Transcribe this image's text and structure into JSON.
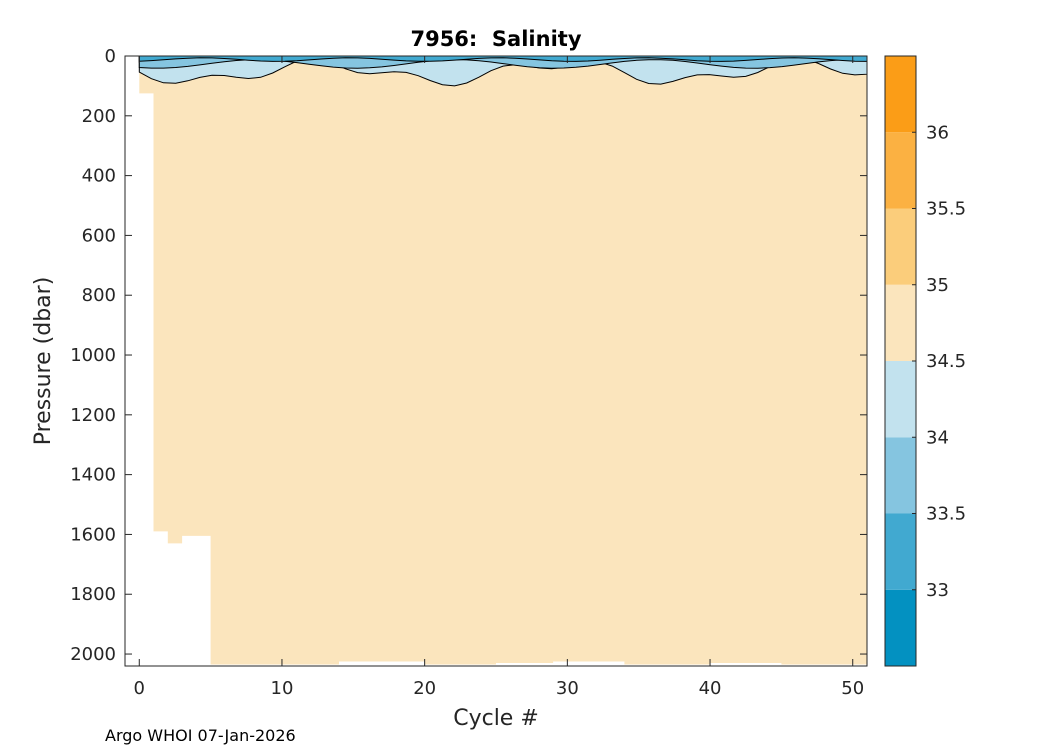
{
  "chart_data": {
    "type": "heatmap",
    "title": "7956:  Salinity",
    "xlabel": "Cycle #",
    "ylabel": "Pressure (dbar)",
    "xlim": [
      -1,
      51
    ],
    "ylim": [
      2040,
      0
    ],
    "xticks": [
      0,
      10,
      20,
      30,
      40,
      50
    ],
    "yticks": [
      0,
      200,
      400,
      600,
      800,
      1000,
      1200,
      1400,
      1600,
      1800,
      2000
    ],
    "grid": false,
    "colorbar": {
      "levels": [
        32.5,
        33,
        33.5,
        34,
        34.5,
        35,
        35.5,
        36,
        36.5
      ],
      "tick_values": [
        33,
        33.5,
        34,
        34.5,
        35,
        35.5,
        36
      ],
      "tick_labels": [
        "33",
        "33.5",
        "34",
        "34.5",
        "35",
        "35.5",
        "36"
      ],
      "colors": [
        "#0391c1",
        "#41a9d0",
        "#85c5e0",
        "#c2e2ee",
        "#fbe5bd",
        "#fbcd7b",
        "#fbb142",
        "#fb9d17"
      ]
    },
    "fill_value_range": [
      34.5,
      35
    ],
    "profile_depths": [
      {
        "cycle": 0,
        "max_pressure": 125
      },
      {
        "cycle": 1,
        "max_pressure": 1590
      },
      {
        "cycle": 2,
        "max_pressure": 1630
      },
      {
        "cycle": 3,
        "max_pressure": 1605
      },
      {
        "cycle": 5,
        "max_pressure": 2035
      },
      {
        "cycle": 9,
        "max_pressure": 2035
      },
      {
        "cycle": 14,
        "max_pressure": 2025
      },
      {
        "cycle": 18,
        "max_pressure": 2025
      },
      {
        "cycle": 20,
        "max_pressure": 2035
      },
      {
        "cycle": 25,
        "max_pressure": 2030
      },
      {
        "cycle": 29,
        "max_pressure": 2025
      },
      {
        "cycle": 34,
        "max_pressure": 2035
      },
      {
        "cycle": 40,
        "max_pressure": 2030
      },
      {
        "cycle": 45,
        "max_pressure": 2035
      },
      {
        "cycle": 51,
        "max_pressure": 2035
      }
    ],
    "surface_layer": {
      "pressure_range": [
        0,
        120
      ],
      "salinity_range": [
        33,
        34.5
      ]
    }
  },
  "footer": "Argo WHOI 07-Jan-2026"
}
